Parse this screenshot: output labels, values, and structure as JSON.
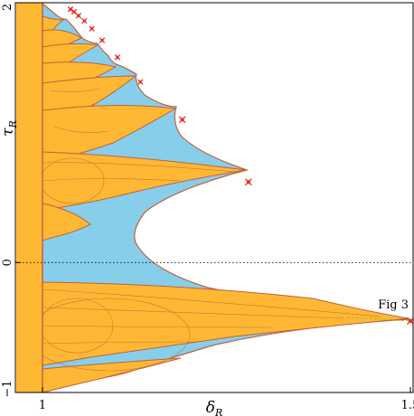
{
  "chart_data": {
    "type": "scatter",
    "title": "",
    "xlabel": "δ",
    "xlabel_sub": "R",
    "ylabel": "τ",
    "ylabel_sub": "R",
    "xlim": [
      1,
      1.5
    ],
    "ylim": [
      -1,
      2
    ],
    "x_ticks": [
      {
        "value": 1,
        "label": "1"
      },
      {
        "value": 1.5,
        "label": "1.5"
      }
    ],
    "y_ticks": [
      {
        "value": -1,
        "label": "−1"
      },
      {
        "value": 0,
        "label": "0"
      },
      {
        "value": 2,
        "label": "2"
      }
    ],
    "reference_line": {
      "y": 0,
      "style": "dotted"
    },
    "colors": {
      "region_blue": "#87ceeb",
      "region_orange": "#ffb833",
      "boundary": "#c0603a",
      "marker": "#e8322a",
      "dashed_line": "#a8b830",
      "frame": "#000000"
    },
    "marked_points": [
      {
        "x": 1.5,
        "y": -0.45
      },
      {
        "x": 1.28,
        "y": 0.62
      },
      {
        "x": 1.19,
        "y": 1.1
      },
      {
        "x": 1.133,
        "y": 1.39
      },
      {
        "x": 1.102,
        "y": 1.58
      },
      {
        "x": 1.081,
        "y": 1.71
      },
      {
        "x": 1.067,
        "y": 1.8
      },
      {
        "x": 1.057,
        "y": 1.86
      },
      {
        "x": 1.049,
        "y": 1.9
      },
      {
        "x": 1.043,
        "y": 1.93
      },
      {
        "x": 1.038,
        "y": 1.95
      }
    ],
    "annotations": [
      {
        "text": "Fig 3",
        "x": 1.5,
        "y": -0.45
      }
    ]
  }
}
